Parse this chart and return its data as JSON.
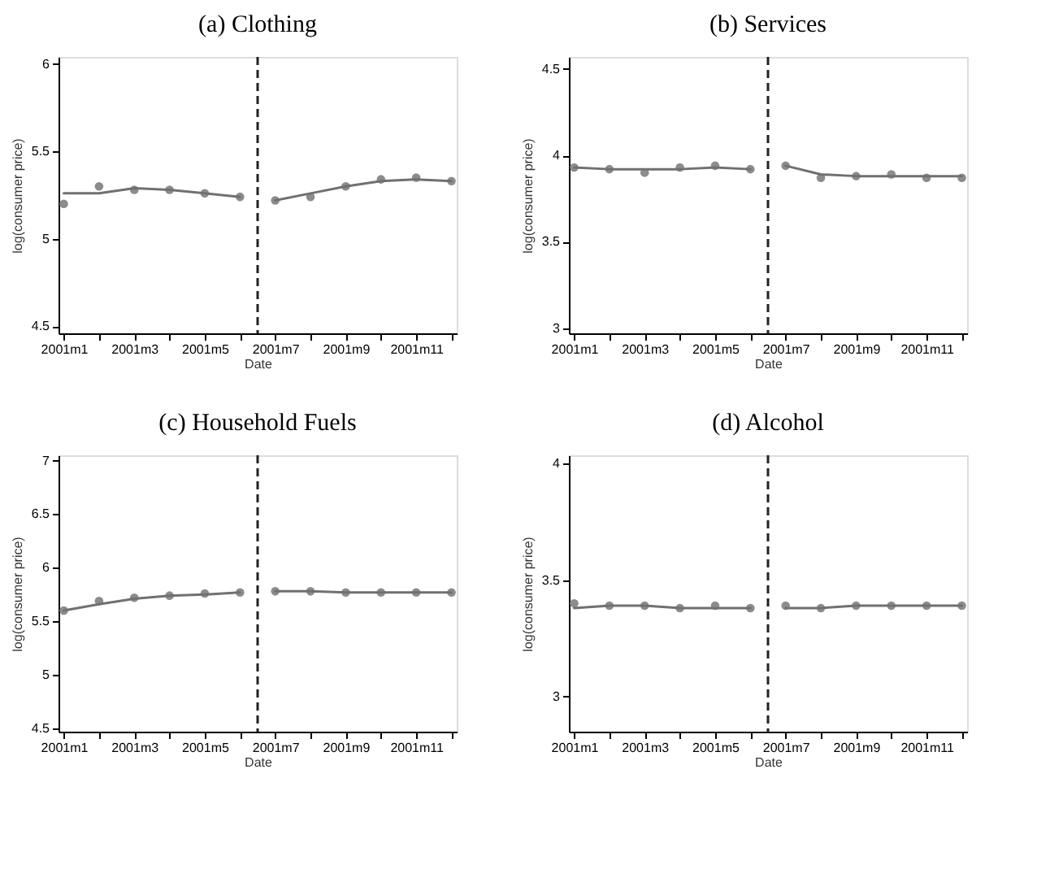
{
  "chart_data": [
    {
      "type": "scatter",
      "title": "(a) Clothing",
      "xlabel": "Date",
      "ylabel": "log(consumer price)",
      "ylim": [
        4.46,
        6.04
      ],
      "yticks": [
        4.5,
        5,
        5.5,
        6
      ],
      "categories": [
        "2001m1",
        null,
        "2001m3",
        null,
        "2001m5",
        null,
        "2001m7",
        null,
        "2001m9",
        null,
        "2001m11",
        null
      ],
      "marker": "circle",
      "grid": false,
      "series": [
        {
          "color": "#8c8c8c",
          "values": [
            5.2,
            5.3,
            5.28,
            5.28,
            5.26,
            5.24,
            5.22,
            5.24,
            5.3,
            5.34,
            5.35,
            5.33
          ]
        },
        {
          "type": "line",
          "marker": "none",
          "color": "#707070",
          "values": [
            5.26,
            5.26,
            5.29,
            5.28,
            5.26,
            5.24,
            null,
            null,
            null,
            null,
            null,
            null
          ]
        },
        {
          "type": "line",
          "marker": "none",
          "color": "#707070",
          "values": [
            null,
            null,
            null,
            null,
            null,
            null,
            5.22,
            5.26,
            5.3,
            5.33,
            5.34,
            5.33
          ]
        }
      ]
    },
    {
      "type": "scatter",
      "title": "(b) Services",
      "xlabel": "Date",
      "ylabel": "log(consumer price)",
      "ylim": [
        2.97,
        4.57
      ],
      "yticks": [
        3,
        3.5,
        4,
        4.5
      ],
      "categories": [
        "2001m1",
        null,
        "2001m3",
        null,
        "2001m5",
        null,
        "2001m7",
        null,
        "2001m9",
        null,
        "2001m11",
        null
      ],
      "marker": "circle",
      "grid": false,
      "series": [
        {
          "color": "#8c8c8c",
          "values": [
            3.93,
            3.92,
            3.9,
            3.93,
            3.94,
            3.92,
            3.94,
            3.87,
            3.88,
            3.89,
            3.87,
            3.87
          ]
        },
        {
          "type": "line",
          "marker": "none",
          "color": "#707070",
          "values": [
            3.93,
            3.92,
            3.92,
            3.92,
            3.93,
            3.92,
            null,
            null,
            null,
            null,
            null,
            null
          ]
        },
        {
          "type": "line",
          "marker": "none",
          "color": "#707070",
          "values": [
            null,
            null,
            null,
            null,
            null,
            null,
            3.94,
            3.89,
            3.88,
            3.88,
            3.88,
            3.88
          ]
        }
      ]
    },
    {
      "type": "scatter",
      "title": "(c) Household Fuels",
      "xlabel": "Date",
      "ylabel": "log(consumer price)",
      "ylim": [
        4.47,
        7.05
      ],
      "yticks": [
        4.5,
        5,
        5.5,
        6,
        6.5,
        7
      ],
      "categories": [
        "2001m1",
        null,
        "2001m3",
        null,
        "2001m5",
        null,
        "2001m7",
        null,
        "2001m9",
        null,
        "2001m11",
        null
      ],
      "marker": "circle",
      "grid": false,
      "series": [
        {
          "color": "#8c8c8c",
          "values": [
            5.6,
            5.69,
            5.72,
            5.74,
            5.76,
            5.77,
            5.78,
            5.78,
            5.77,
            5.77,
            5.77,
            5.77
          ]
        },
        {
          "type": "line",
          "marker": "none",
          "color": "#707070",
          "values": [
            5.6,
            5.66,
            5.71,
            5.74,
            5.75,
            5.77,
            null,
            null,
            null,
            null,
            null,
            null
          ]
        },
        {
          "type": "line",
          "marker": "none",
          "color": "#707070",
          "values": [
            null,
            null,
            null,
            null,
            null,
            null,
            5.78,
            5.78,
            5.77,
            5.77,
            5.77,
            5.77
          ]
        }
      ]
    },
    {
      "type": "scatter",
      "title": "(d) Alcohol",
      "xlabel": "Date",
      "ylabel": "log(consumer price)",
      "ylim": [
        2.85,
        4.035
      ],
      "yticks": [
        3,
        3.5,
        4
      ],
      "categories": [
        "2001m1",
        null,
        "2001m3",
        null,
        "2001m5",
        null,
        "2001m7",
        null,
        "2001m9",
        null,
        "2001m11",
        null
      ],
      "marker": "circle",
      "grid": false,
      "series": [
        {
          "color": "#8c8c8c",
          "values": [
            3.4,
            3.39,
            3.39,
            3.38,
            3.39,
            3.38,
            3.39,
            3.38,
            3.39,
            3.39,
            3.39,
            3.39
          ]
        },
        {
          "type": "line",
          "marker": "none",
          "color": "#707070",
          "values": [
            3.38,
            3.39,
            3.39,
            3.38,
            3.38,
            3.38,
            null,
            null,
            null,
            null,
            null,
            null
          ]
        },
        {
          "type": "line",
          "marker": "none",
          "color": "#707070",
          "values": [
            null,
            null,
            null,
            null,
            null,
            null,
            3.38,
            3.38,
            3.39,
            3.39,
            3.39,
            3.39
          ]
        }
      ]
    }
  ]
}
